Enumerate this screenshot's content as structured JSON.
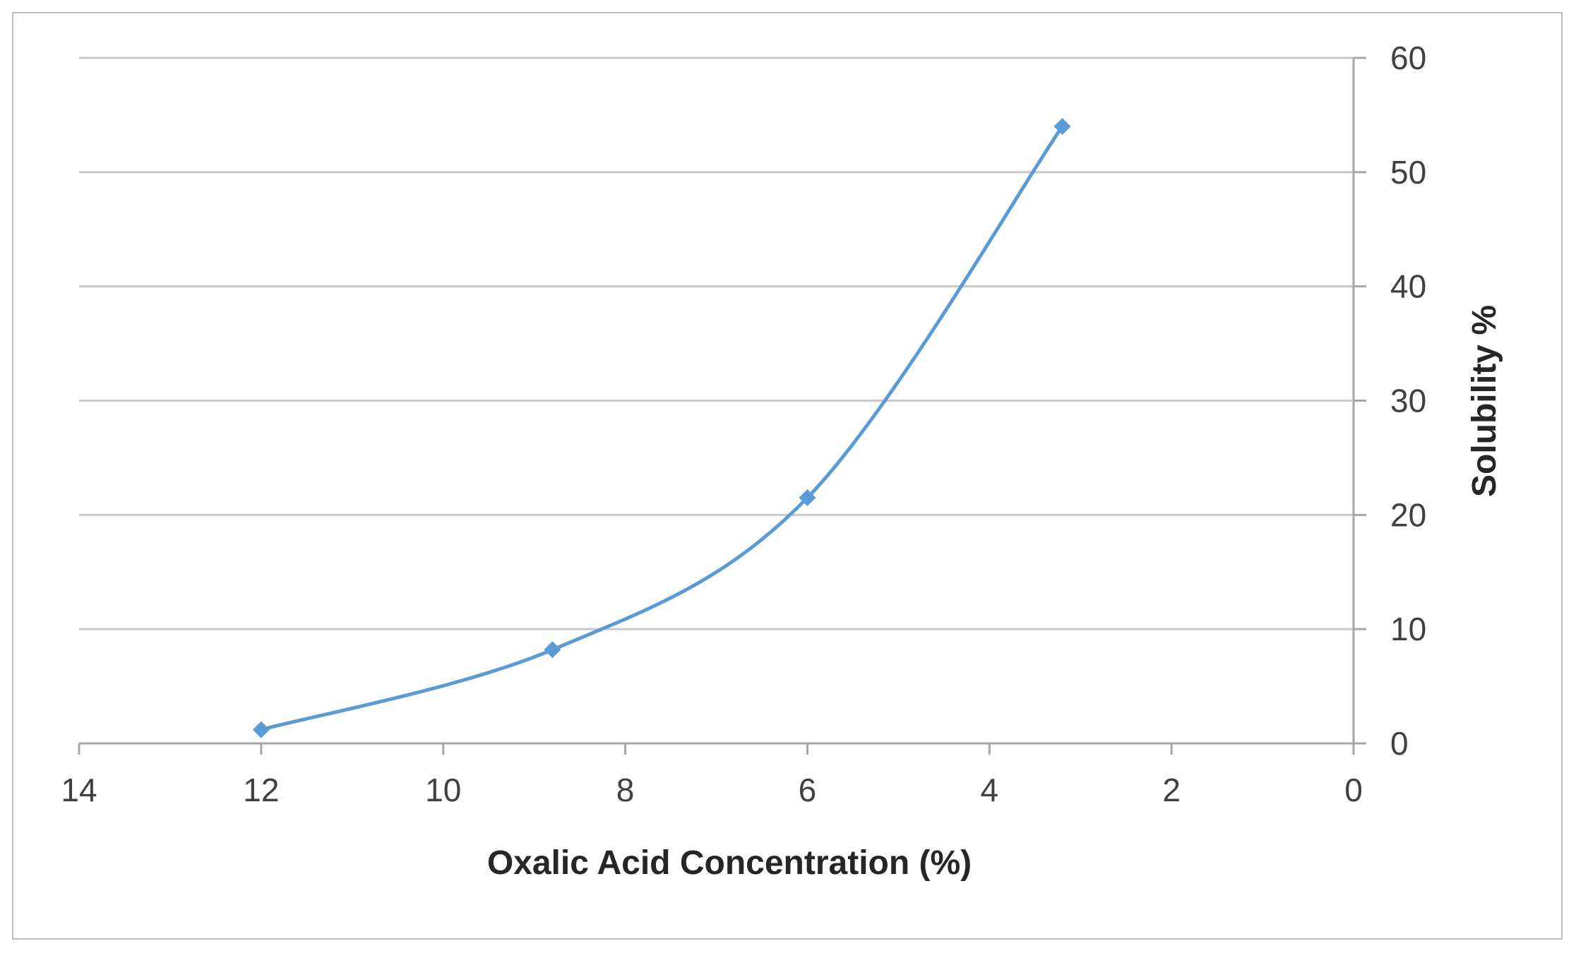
{
  "chart_data": {
    "type": "line",
    "smooth": true,
    "x_reversed": true,
    "xlabel": "Oxalic Acid Concentration (%)",
    "ylabel": "Solubility %",
    "y_axis_side": "right",
    "xlim": [
      0,
      14
    ],
    "ylim": [
      0,
      60
    ],
    "x_ticks": [
      "14",
      "12",
      "10",
      "8",
      "6",
      "4",
      "2",
      "0"
    ],
    "y_ticks": [
      "0",
      "10",
      "20",
      "30",
      "40",
      "50",
      "60"
    ],
    "grid": "horizontal",
    "legend": "none",
    "series": [
      {
        "color": "#5b9bd5",
        "marker": "diamond",
        "x": [
          12,
          8.8,
          6,
          3.2
        ],
        "y": [
          1.2,
          8.2,
          21.5,
          54
        ]
      }
    ]
  }
}
